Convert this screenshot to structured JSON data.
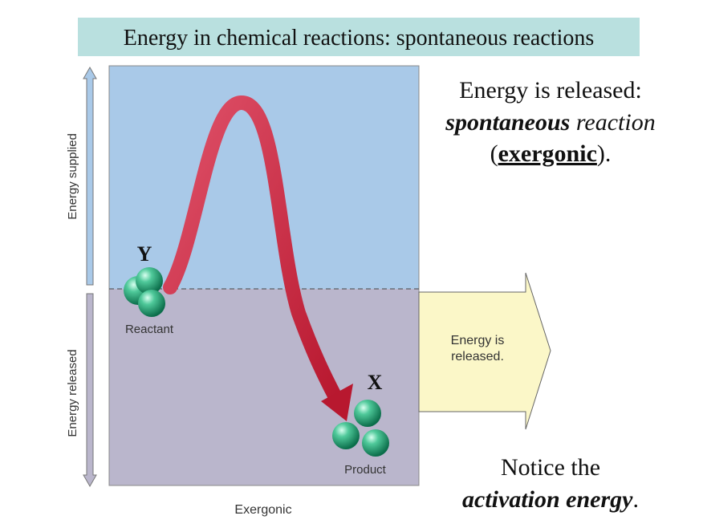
{
  "title": "Energy in chemical reactions: spontaneous reactions",
  "diagram": {
    "axis_top": "Energy supplied",
    "axis_bottom": "Energy released",
    "axis_x": "Exergonic",
    "reactant": "Reactant",
    "product": "Product",
    "reactant_symbol": "Y",
    "product_symbol": "X",
    "arrow_label": "Energy is released."
  },
  "explanation": {
    "line1": "Energy is released:",
    "line2": [
      "spontaneous",
      " reaction"
    ],
    "line3": [
      "(",
      "exergonic",
      ")."
    ]
  },
  "note": {
    "line1": "Notice the",
    "line2": [
      "activation energy",
      "."
    ]
  }
}
